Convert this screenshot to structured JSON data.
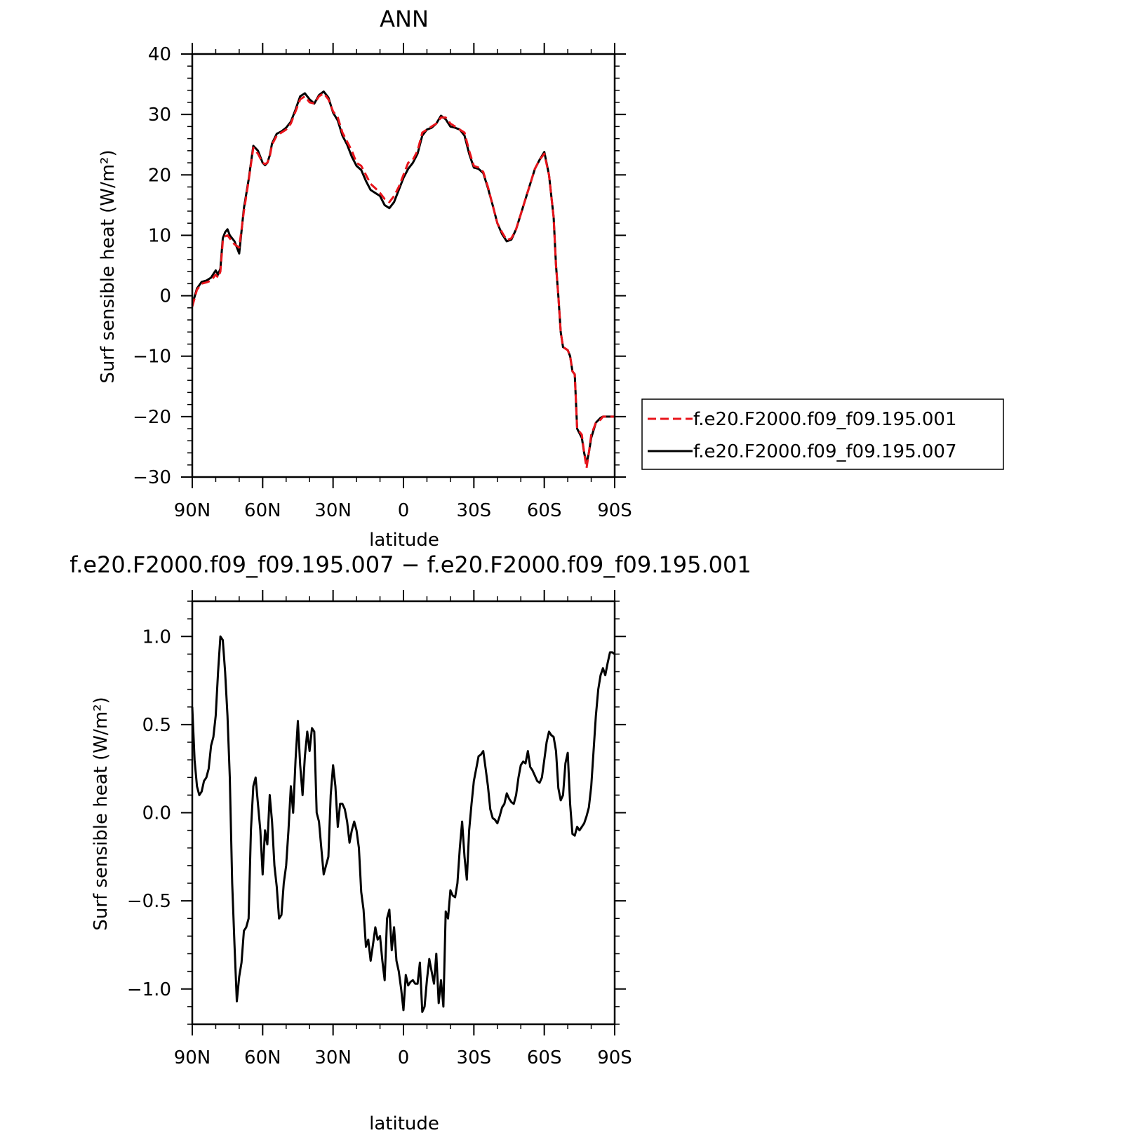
{
  "chart_data": [
    {
      "type": "line",
      "title": "ANN",
      "xlabel": "latitude",
      "ylabel": "Surf sensible heat (W/m²)",
      "xlim": [
        90,
        -90
      ],
      "ylim": [
        -30,
        40
      ],
      "yticks": [
        {
          "value": 40,
          "label": "40"
        },
        {
          "value": 30,
          "label": "30"
        },
        {
          "value": 20,
          "label": "20"
        },
        {
          "value": 10,
          "label": "10"
        },
        {
          "value": 0,
          "label": "0"
        },
        {
          "value": -10,
          "label": "−10"
        },
        {
          "value": -20,
          "label": "−20"
        },
        {
          "value": -30,
          "label": "−30"
        }
      ],
      "xticks": [
        {
          "value": 90,
          "label": "90N"
        },
        {
          "value": 60,
          "label": "60N"
        },
        {
          "value": 30,
          "label": "30N"
        },
        {
          "value": 0,
          "label": "0"
        },
        {
          "value": -30,
          "label": "30S"
        },
        {
          "value": -60,
          "label": "60S"
        },
        {
          "value": -90,
          "label": "90S"
        }
      ],
      "legend_position": "right",
      "grid": false,
      "series": [
        {
          "name": "f.e20.F2000.f09_f09.195.001",
          "color": "#e8141b",
          "dash": "dashed",
          "x": [
            90,
            88,
            86,
            84,
            82,
            80,
            79,
            78,
            77,
            76,
            75,
            74,
            72,
            70,
            68,
            66,
            64,
            62,
            60,
            59,
            58,
            57,
            56,
            54,
            52,
            50,
            48,
            46,
            44,
            42,
            40,
            38,
            36,
            34,
            32,
            30,
            28,
            26,
            24,
            22,
            20,
            18,
            16,
            14,
            12,
            10,
            8,
            6,
            4,
            2,
            0,
            -2,
            -4,
            -6,
            -8,
            -10,
            -12,
            -14,
            -16,
            -18,
            -20,
            -22,
            -24,
            -26,
            -28,
            -30,
            -32,
            -34,
            -36,
            -38,
            -40,
            -42,
            -44,
            -46,
            -48,
            -50,
            -52,
            -54,
            -56,
            -58,
            -60,
            -62,
            -64,
            -65,
            -66,
            -67,
            -68,
            -70,
            -71,
            -72,
            -73,
            -74,
            -76,
            -77,
            -78,
            -79,
            -80,
            -82,
            -84,
            -85,
            -86,
            -88,
            -90
          ],
          "values": [
            -1.8,
            1,
            2,
            2.2,
            2.5,
            3.5,
            3,
            4,
            9,
            9.8,
            10,
            9.5,
            8.5,
            8,
            14,
            19,
            24.5,
            23.5,
            22,
            21.8,
            22,
            23,
            25,
            26.5,
            27,
            27.5,
            28.5,
            30.5,
            32.5,
            33,
            32,
            31.8,
            33,
            33.5,
            32.5,
            30.5,
            29.5,
            27,
            25.5,
            24,
            22,
            21.5,
            20,
            18.5,
            17.8,
            17,
            16,
            15.5,
            16.5,
            18,
            20,
            22,
            22.5,
            24,
            27,
            27.5,
            28,
            28.5,
            29.5,
            29.5,
            28.5,
            28,
            27.5,
            27,
            24,
            21.5,
            21.2,
            20.5,
            18,
            15,
            12,
            10.5,
            9.2,
            9.5,
            11,
            13.5,
            16,
            18.5,
            21,
            22.5,
            23.5,
            20,
            13,
            5,
            0,
            -6,
            -8.5,
            -9,
            -10,
            -12.5,
            -13,
            -22,
            -23,
            -26,
            -28.5,
            -26,
            -23,
            -21,
            -20.5,
            -20,
            -20,
            -20,
            -20
          ]
        },
        {
          "name": "f.e20.F2000.f09_f09.195.007",
          "color": "#000000",
          "dash": "solid",
          "x": [
            90,
            88,
            86,
            84,
            82,
            80,
            79,
            78,
            77,
            76,
            75,
            74,
            72,
            70,
            68,
            66,
            64,
            62,
            60,
            59,
            58,
            57,
            56,
            54,
            52,
            50,
            48,
            46,
            44,
            42,
            40,
            38,
            36,
            34,
            32,
            30,
            28,
            26,
            24,
            22,
            20,
            18,
            16,
            14,
            12,
            10,
            8,
            6,
            4,
            2,
            0,
            -2,
            -4,
            -6,
            -8,
            -10,
            -12,
            -14,
            -16,
            -18,
            -20,
            -22,
            -24,
            -26,
            -28,
            -30,
            -32,
            -34,
            -36,
            -38,
            -40,
            -42,
            -44,
            -46,
            -48,
            -50,
            -52,
            -54,
            -56,
            -58,
            -60,
            -62,
            -64,
            -65,
            -66,
            -67,
            -68,
            -70,
            -71,
            -72,
            -73,
            -74,
            -76,
            -77,
            -78,
            -79,
            -80,
            -82,
            -84,
            -85,
            -86,
            -88,
            -90
          ],
          "values": [
            -1.5,
            1.2,
            2.3,
            2.5,
            3,
            4.2,
            3.5,
            4.5,
            9.5,
            10.5,
            11,
            10,
            9,
            7,
            14.5,
            19.2,
            24.8,
            24,
            22,
            21.6,
            22,
            23.2,
            25.2,
            26.8,
            27.2,
            27.8,
            28.8,
            30.8,
            33,
            33.5,
            32.5,
            31.8,
            33.2,
            33.8,
            32.8,
            30.3,
            29,
            26.5,
            25,
            23,
            21.5,
            20.8,
            19,
            17.5,
            17,
            16.5,
            15,
            14.5,
            15.5,
            17.5,
            19.5,
            21,
            22,
            23.5,
            26.5,
            27.5,
            27.8,
            28.5,
            29.8,
            29.2,
            28,
            27.8,
            27.5,
            26.5,
            23.5,
            21.2,
            21,
            20.3,
            17.8,
            15,
            12,
            10.2,
            9,
            9.3,
            11,
            13.5,
            16,
            18.5,
            21,
            22.5,
            23.8,
            20,
            13,
            5,
            0,
            -6,
            -8.5,
            -9,
            -10,
            -12.5,
            -13,
            -22,
            -23.5,
            -26,
            -27.8,
            -26,
            -23.5,
            -21,
            -20.2,
            -20,
            -20,
            -20,
            -20
          ]
        }
      ]
    },
    {
      "type": "line",
      "title": "f.e20.F2000.f09_f09.195.007 − f.e20.F2000.f09_f09.195.001",
      "xlabel": "latitude",
      "ylabel": "Surf sensible heat (W/m²)",
      "xlim": [
        90,
        -90
      ],
      "ylim": [
        -1.2,
        1.2
      ],
      "yticks": [
        {
          "value": 1.0,
          "label": "1.0"
        },
        {
          "value": 0.5,
          "label": "0.5"
        },
        {
          "value": 0.0,
          "label": "0.0"
        },
        {
          "value": -0.5,
          "label": "−0.5"
        },
        {
          "value": -1.0,
          "label": "−1.0"
        }
      ],
      "xticks": [
        {
          "value": 90,
          "label": "90N"
        },
        {
          "value": 60,
          "label": "60N"
        },
        {
          "value": 30,
          "label": "30N"
        },
        {
          "value": 0,
          "label": "0"
        },
        {
          "value": -30,
          "label": "30S"
        },
        {
          "value": -60,
          "label": "60S"
        },
        {
          "value": -90,
          "label": "90S"
        }
      ],
      "grid": false,
      "series": [
        {
          "color": "#000000",
          "dash": "solid",
          "x": [
            90,
            89,
            88,
            87,
            86,
            85,
            84,
            83,
            82,
            81,
            80,
            79,
            78,
            77,
            76,
            75,
            74,
            73,
            72,
            71,
            70,
            69,
            68,
            67,
            66,
            65,
            64,
            63,
            62,
            61,
            60,
            59,
            58,
            57,
            56,
            55,
            54,
            53,
            52,
            51,
            50,
            49,
            48,
            47,
            46,
            45,
            44,
            43,
            42,
            41,
            40,
            39,
            38,
            37,
            36,
            35,
            34,
            33,
            32,
            31,
            30,
            29,
            28,
            27,
            26,
            25,
            24,
            23,
            22,
            21,
            20,
            19,
            18,
            17,
            16,
            15,
            14,
            13,
            12,
            11,
            10,
            9,
            8,
            7,
            6,
            5,
            4,
            3,
            2,
            1,
            0,
            -1,
            -2,
            -3,
            -4,
            -5,
            -6,
            -7,
            -8,
            -9,
            -10,
            -11,
            -12,
            -13,
            -14,
            -15,
            -16,
            -17,
            -18,
            -19,
            -20,
            -21,
            -22,
            -23,
            -24,
            -25,
            -26,
            -27,
            -28,
            -29,
            -30,
            -31,
            -32,
            -33,
            -34,
            -35,
            -36,
            -37,
            -38,
            -39,
            -40,
            -41,
            -42,
            -43,
            -44,
            -45,
            -46,
            -47,
            -48,
            -49,
            -50,
            -51,
            -52,
            -53,
            -54,
            -55,
            -56,
            -57,
            -58,
            -59,
            -60,
            -61,
            -62,
            -63,
            -64,
            -65,
            -66,
            -67,
            -68,
            -69,
            -70,
            -71,
            -72,
            -73,
            -74,
            -75,
            -76,
            -77,
            -78,
            -79,
            -80,
            -81,
            -82,
            -83,
            -84,
            -85,
            -86,
            -87,
            -88,
            -89,
            -90
          ],
          "values": [
            0.6,
            0.3,
            0.15,
            0.1,
            0.12,
            0.18,
            0.2,
            0.25,
            0.38,
            0.43,
            0.55,
            0.8,
            1.0,
            0.98,
            0.8,
            0.55,
            0.2,
            -0.4,
            -0.75,
            -1.07,
            -0.93,
            -0.85,
            -0.67,
            -0.65,
            -0.6,
            -0.1,
            0.15,
            0.2,
            0.05,
            -0.1,
            -0.35,
            -0.1,
            -0.18,
            0.1,
            -0.05,
            -0.3,
            -0.42,
            -0.6,
            -0.58,
            -0.4,
            -0.3,
            -0.1,
            0.15,
            0.0,
            0.3,
            0.52,
            0.27,
            0.1,
            0.32,
            0.46,
            0.35,
            0.48,
            0.46,
            0.0,
            -0.05,
            -0.2,
            -0.35,
            -0.3,
            -0.25,
            0.1,
            0.27,
            0.15,
            -0.08,
            0.05,
            0.05,
            0.02,
            -0.05,
            -0.17,
            -0.1,
            -0.05,
            -0.1,
            -0.2,
            -0.45,
            -0.55,
            -0.76,
            -0.72,
            -0.84,
            -0.75,
            -0.65,
            -0.72,
            -0.7,
            -0.84,
            -0.95,
            -0.6,
            -0.55,
            -0.78,
            -0.65,
            -0.84,
            -0.9,
            -1.0,
            -1.12,
            -0.92,
            -0.98,
            -0.96,
            -0.95,
            -0.97,
            -0.97,
            -0.85,
            -1.13,
            -1.1,
            -0.95,
            -0.83,
            -0.9,
            -0.97,
            -0.8,
            -1.08,
            -0.95,
            -1.1,
            -0.56,
            -0.6,
            -0.44,
            -0.47,
            -0.48,
            -0.4,
            -0.2,
            -0.05,
            -0.25,
            -0.38,
            -0.1,
            0.05,
            0.18,
            0.25,
            0.32,
            0.33,
            0.35,
            0.25,
            0.15,
            0.02,
            -0.03,
            -0.04,
            -0.06,
            -0.02,
            0.03,
            0.05,
            0.11,
            0.08,
            0.06,
            0.05,
            0.1,
            0.2,
            0.27,
            0.29,
            0.28,
            0.35,
            0.26,
            0.24,
            0.21,
            0.18,
            0.17,
            0.2,
            0.3,
            0.4,
            0.46,
            0.44,
            0.43,
            0.35,
            0.14,
            0.07,
            0.1,
            0.28,
            0.34,
            0.05,
            -0.12,
            -0.13,
            -0.08,
            -0.1,
            -0.08,
            -0.06,
            -0.02,
            0.03,
            0.15,
            0.35,
            0.55,
            0.7,
            0.78,
            0.82,
            0.78,
            0.85,
            0.91,
            0.91,
            0.9
          ]
        }
      ]
    }
  ]
}
